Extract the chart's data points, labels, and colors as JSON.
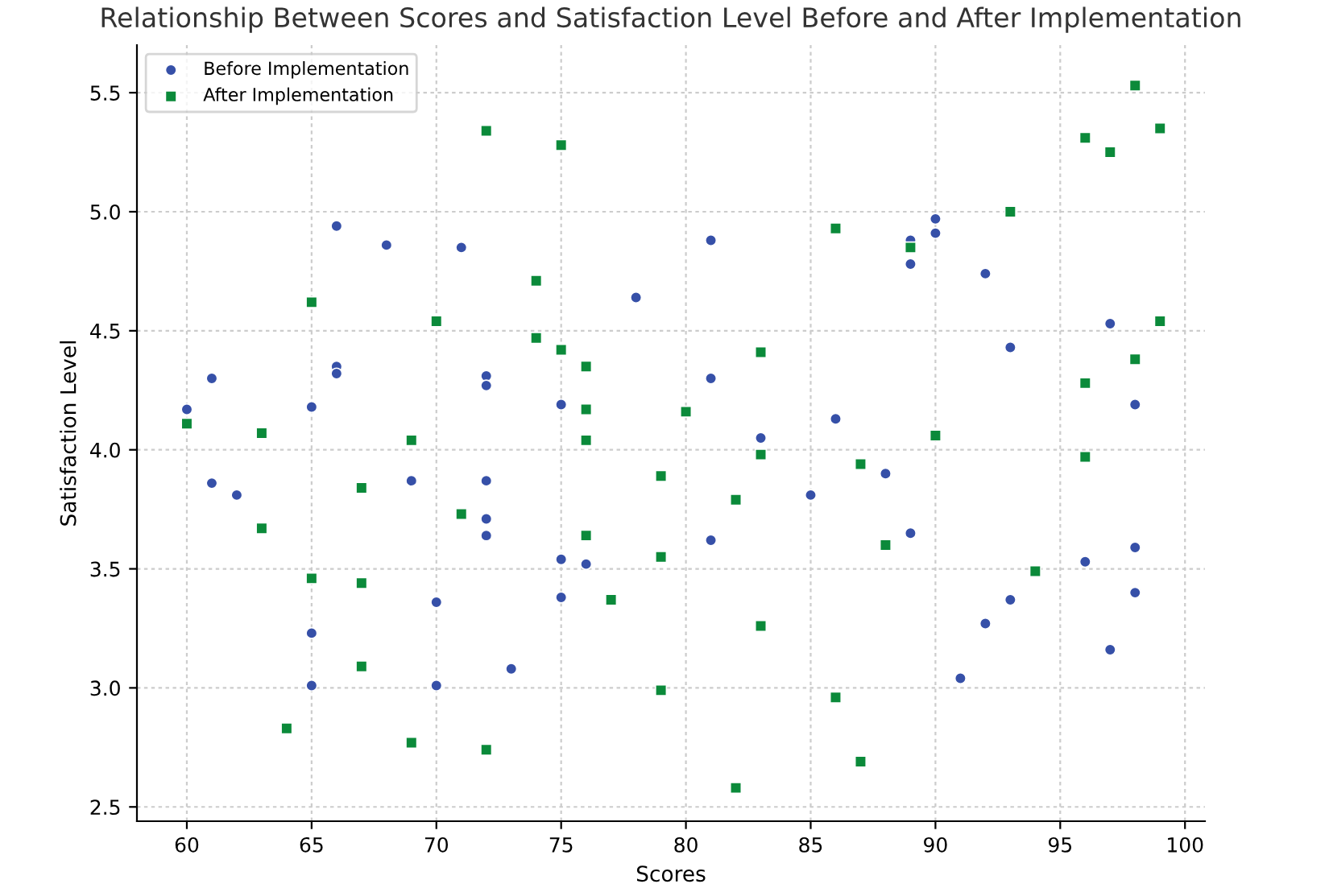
{
  "chart_data": {
    "type": "scatter",
    "title": "Relationship Between Scores and Satisfaction Level Before and After Implementation",
    "xlabel": "Scores",
    "ylabel": "Satisfaction Level",
    "xlim": [
      58,
      100.8
    ],
    "ylim": [
      2.44,
      5.7
    ],
    "xticks": [
      60,
      65,
      70,
      75,
      80,
      85,
      90,
      95,
      100
    ],
    "yticks": [
      2.5,
      {
        "value": 3,
        "label": "3.0"
      },
      3.5,
      {
        "value": 4,
        "label": "4.0"
      },
      4.5,
      {
        "value": 5,
        "label": "5.0"
      },
      5.5
    ],
    "grid": true,
    "legend": "top left",
    "series": [
      {
        "name": "Before Implementation",
        "color": "#3650a8",
        "marker": "circle",
        "x": [
          60,
          61,
          61,
          62,
          65,
          65,
          65,
          66,
          66,
          66,
          68,
          69,
          70,
          70,
          71,
          72,
          72,
          72,
          72,
          72,
          73,
          75,
          75,
          75,
          76,
          78,
          81,
          81,
          81,
          83,
          85,
          86,
          88,
          89,
          89,
          89,
          90,
          90,
          91,
          92,
          92,
          93,
          93,
          96,
          97,
          97,
          98,
          98,
          98
        ],
        "values": [
          4.17,
          4.3,
          3.86,
          3.81,
          4.18,
          3.23,
          3.01,
          4.94,
          4.35,
          4.32,
          4.86,
          3.87,
          3.36,
          3.01,
          4.85,
          4.31,
          4.27,
          3.87,
          3.71,
          3.64,
          3.08,
          4.19,
          3.54,
          3.38,
          3.52,
          4.64,
          4.88,
          4.3,
          3.62,
          4.05,
          3.81,
          4.13,
          3.9,
          4.88,
          4.78,
          3.65,
          4.97,
          4.91,
          3.04,
          4.74,
          3.27,
          4.43,
          3.37,
          3.53,
          4.53,
          3.16,
          4.19,
          3.59,
          3.4
        ]
      },
      {
        "name": "After Implementation",
        "color": "#0b8a3a",
        "marker": "square",
        "x": [
          60,
          63,
          63,
          64,
          65,
          65,
          67,
          67,
          67,
          69,
          69,
          70,
          71,
          72,
          72,
          74,
          74,
          75,
          75,
          76,
          76,
          76,
          76,
          77,
          79,
          79,
          79,
          80,
          82,
          82,
          83,
          83,
          83,
          86,
          86,
          87,
          87,
          88,
          89,
          90,
          93,
          94,
          96,
          96,
          96,
          97,
          98,
          98,
          99,
          99
        ],
        "values": [
          4.11,
          4.07,
          3.67,
          2.83,
          4.62,
          3.46,
          3.84,
          3.44,
          3.09,
          4.04,
          2.77,
          4.54,
          3.73,
          5.34,
          2.74,
          4.71,
          4.47,
          5.28,
          4.42,
          4.35,
          4.17,
          4.04,
          3.64,
          3.37,
          3.89,
          3.55,
          2.99,
          4.16,
          3.79,
          2.58,
          4.41,
          3.98,
          3.26,
          4.93,
          2.96,
          3.94,
          2.69,
          3.6,
          4.85,
          4.06,
          5.0,
          3.49,
          5.31,
          4.28,
          3.97,
          5.25,
          5.53,
          4.38,
          5.35,
          4.54
        ]
      }
    ]
  }
}
